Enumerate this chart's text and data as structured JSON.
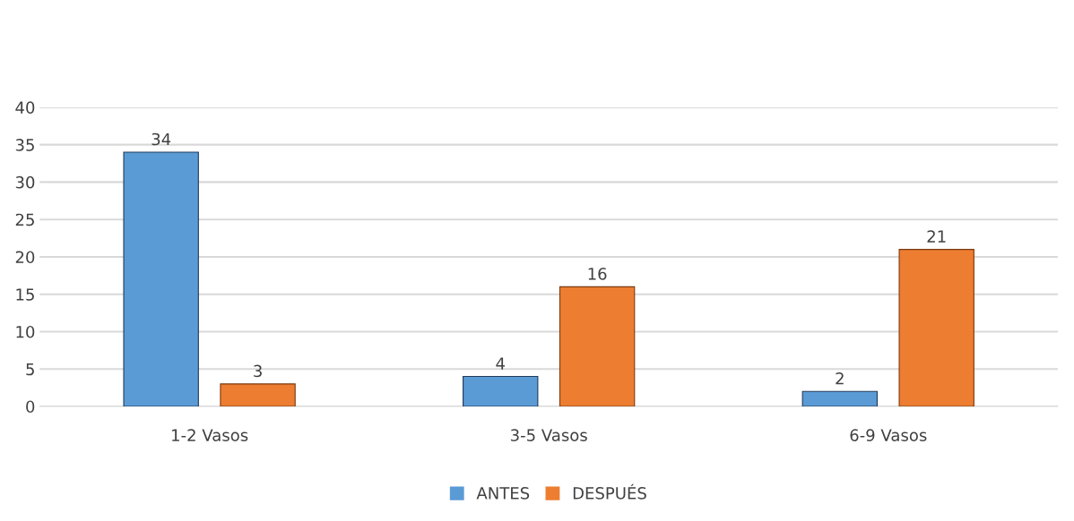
{
  "chart_data": {
    "type": "bar",
    "categories": [
      "1-2 Vasos",
      "3-5 Vasos",
      "6-9 Vasos"
    ],
    "series": [
      {
        "name": "ANTES",
        "color": "#5b9bd5",
        "values": [
          34,
          4,
          2
        ]
      },
      {
        "name": "DESPUÉS",
        "color": "#ed7d31",
        "values": [
          3,
          16,
          21
        ]
      }
    ],
    "ylim": [
      0,
      40
    ],
    "yticks": [
      0,
      5,
      10,
      15,
      20,
      25,
      30,
      35,
      40
    ],
    "grid": "y",
    "legend": "bottom",
    "data_labels": true
  }
}
